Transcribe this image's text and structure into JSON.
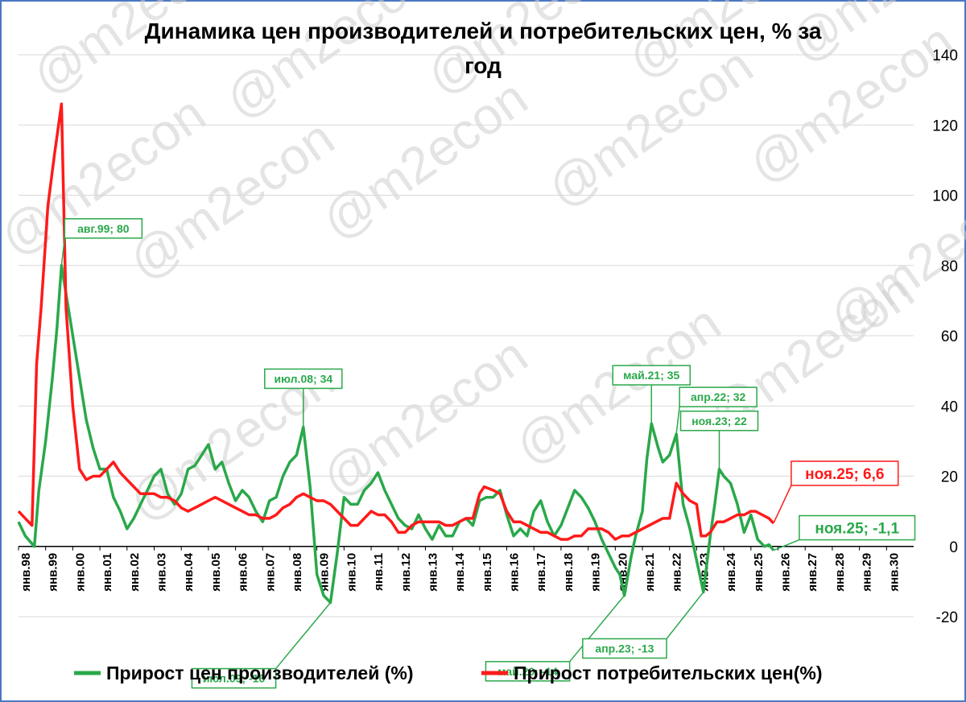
{
  "chart_data": {
    "type": "line",
    "title_line1": "Динамика цен производителей и потребительских цен, % за",
    "title_line2": "год",
    "watermark": "@m2econ",
    "ylim": [
      -20,
      140
    ],
    "y_ticks": [
      -20,
      0,
      20,
      40,
      60,
      80,
      100,
      120,
      140
    ],
    "y_axis_position": "right",
    "grid": true,
    "x_range": [
      "1998-01",
      "2031-01"
    ],
    "x_ticks": [
      "янв.98",
      "янв.99",
      "янв.00",
      "янв.01",
      "янв.02",
      "янв.03",
      "янв.04",
      "янв.05",
      "янв.06",
      "янв.07",
      "янв.08",
      "янв.09",
      "янв.10",
      "янв.11",
      "янв.12",
      "янв.13",
      "янв.14",
      "янв.15",
      "янв.16",
      "янв.17",
      "янв.18",
      "янв.19",
      "янв.20",
      "янв.21",
      "янв.22",
      "янв.23",
      "янв.24",
      "янв.25",
      "янв.26",
      "янв.27",
      "янв.28",
      "янв.29",
      "янв.30"
    ],
    "legend_position": "bottom",
    "series": [
      {
        "name": "Прирост цен производителей (%)",
        "color": "#2aa84a",
        "points": [
          [
            "1998-01",
            7
          ],
          [
            "1998-04",
            3
          ],
          [
            "1998-08",
            0
          ],
          [
            "1998-10",
            16
          ],
          [
            "1999-01",
            30
          ],
          [
            "1999-04",
            48
          ],
          [
            "1999-06",
            62
          ],
          [
            "1999-08",
            80
          ],
          [
            "1999-10",
            72
          ],
          [
            "2000-01",
            60
          ],
          [
            "2000-04",
            48
          ],
          [
            "2000-07",
            36
          ],
          [
            "2000-10",
            28
          ],
          [
            "2001-01",
            22
          ],
          [
            "2001-04",
            22
          ],
          [
            "2001-07",
            14
          ],
          [
            "2001-10",
            10
          ],
          [
            "2002-01",
            5
          ],
          [
            "2002-04",
            8
          ],
          [
            "2002-07",
            12
          ],
          [
            "2002-10",
            16
          ],
          [
            "2003-01",
            20
          ],
          [
            "2003-04",
            22
          ],
          [
            "2003-07",
            15
          ],
          [
            "2003-10",
            12
          ],
          [
            "2004-01",
            15
          ],
          [
            "2004-04",
            22
          ],
          [
            "2004-07",
            23
          ],
          [
            "2004-10",
            26
          ],
          [
            "2005-01",
            29
          ],
          [
            "2005-04",
            22
          ],
          [
            "2005-07",
            24
          ],
          [
            "2005-10",
            18
          ],
          [
            "2006-01",
            13
          ],
          [
            "2006-04",
            16
          ],
          [
            "2006-07",
            14
          ],
          [
            "2006-10",
            10
          ],
          [
            "2007-01",
            7
          ],
          [
            "2007-04",
            13
          ],
          [
            "2007-07",
            14
          ],
          [
            "2007-10",
            20
          ],
          [
            "2008-01",
            24
          ],
          [
            "2008-04",
            26
          ],
          [
            "2008-07",
            34
          ],
          [
            "2008-10",
            17
          ],
          [
            "2009-01",
            -8
          ],
          [
            "2009-04",
            -14
          ],
          [
            "2009-07",
            -16
          ],
          [
            "2009-10",
            -2
          ],
          [
            "2010-01",
            14
          ],
          [
            "2010-04",
            12
          ],
          [
            "2010-07",
            12
          ],
          [
            "2010-10",
            16
          ],
          [
            "2011-01",
            18
          ],
          [
            "2011-04",
            21
          ],
          [
            "2011-07",
            16
          ],
          [
            "2011-10",
            12
          ],
          [
            "2012-01",
            8
          ],
          [
            "2012-04",
            6
          ],
          [
            "2012-07",
            5
          ],
          [
            "2012-10",
            9
          ],
          [
            "2013-01",
            5
          ],
          [
            "2013-04",
            2
          ],
          [
            "2013-07",
            6
          ],
          [
            "2013-10",
            3
          ],
          [
            "2014-01",
            3
          ],
          [
            "2014-04",
            7
          ],
          [
            "2014-07",
            8
          ],
          [
            "2014-10",
            6
          ],
          [
            "2015-01",
            13
          ],
          [
            "2015-04",
            14
          ],
          [
            "2015-07",
            14
          ],
          [
            "2015-10",
            16
          ],
          [
            "2016-01",
            9
          ],
          [
            "2016-04",
            3
          ],
          [
            "2016-07",
            5
          ],
          [
            "2016-10",
            3
          ],
          [
            "2017-01",
            10
          ],
          [
            "2017-04",
            13
          ],
          [
            "2017-07",
            7
          ],
          [
            "2017-10",
            3
          ],
          [
            "2018-01",
            6
          ],
          [
            "2018-04",
            11
          ],
          [
            "2018-07",
            16
          ],
          [
            "2018-10",
            14
          ],
          [
            "2019-01",
            11
          ],
          [
            "2019-04",
            7
          ],
          [
            "2019-07",
            2
          ],
          [
            "2019-10",
            -2
          ],
          [
            "2020-01",
            -6
          ],
          [
            "2020-03",
            -8
          ],
          [
            "2020-05",
            -14
          ],
          [
            "2020-08",
            -3
          ],
          [
            "2020-10",
            3
          ],
          [
            "2021-01",
            10
          ],
          [
            "2021-03",
            25
          ],
          [
            "2021-05",
            35
          ],
          [
            "2021-08",
            28
          ],
          [
            "2021-10",
            24
          ],
          [
            "2022-01",
            26
          ],
          [
            "2022-04",
            32
          ],
          [
            "2022-07",
            12
          ],
          [
            "2022-10",
            5
          ],
          [
            "2023-01",
            -4
          ],
          [
            "2023-04",
            -13
          ],
          [
            "2023-07",
            3
          ],
          [
            "2023-09",
            12
          ],
          [
            "2023-11",
            22
          ],
          [
            "2024-01",
            20
          ],
          [
            "2024-04",
            18
          ],
          [
            "2024-07",
            12
          ],
          [
            "2024-10",
            4
          ],
          [
            "2025-01",
            9
          ],
          [
            "2025-04",
            2
          ],
          [
            "2025-07",
            0
          ],
          [
            "2025-09",
            0.5
          ],
          [
            "2025-11",
            -1.1
          ]
        ]
      },
      {
        "name": "Прирост потребительских цен(%)",
        "color": "#ff1a1a",
        "points": [
          [
            "1998-01",
            10
          ],
          [
            "1998-04",
            8
          ],
          [
            "1998-07",
            6
          ],
          [
            "1998-09",
            52
          ],
          [
            "1998-11",
            68
          ],
          [
            "1999-02",
            97
          ],
          [
            "1999-05",
            112
          ],
          [
            "1999-08",
            126
          ],
          [
            "1999-10",
            68
          ],
          [
            "2000-01",
            40
          ],
          [
            "2000-04",
            22
          ],
          [
            "2000-07",
            19
          ],
          [
            "2000-10",
            20
          ],
          [
            "2001-01",
            20
          ],
          [
            "2001-04",
            22
          ],
          [
            "2001-07",
            24
          ],
          [
            "2001-10",
            21
          ],
          [
            "2002-01",
            19
          ],
          [
            "2002-04",
            17
          ],
          [
            "2002-07",
            15
          ],
          [
            "2002-10",
            15
          ],
          [
            "2003-01",
            15
          ],
          [
            "2003-04",
            14
          ],
          [
            "2003-07",
            14
          ],
          [
            "2003-10",
            13
          ],
          [
            "2004-01",
            11
          ],
          [
            "2004-04",
            10
          ],
          [
            "2004-07",
            11
          ],
          [
            "2004-10",
            12
          ],
          [
            "2005-01",
            13
          ],
          [
            "2005-04",
            14
          ],
          [
            "2005-07",
            13
          ],
          [
            "2005-10",
            12
          ],
          [
            "2006-01",
            11
          ],
          [
            "2006-04",
            10
          ],
          [
            "2006-07",
            9
          ],
          [
            "2006-10",
            9
          ],
          [
            "2007-01",
            8
          ],
          [
            "2007-04",
            8
          ],
          [
            "2007-07",
            9
          ],
          [
            "2007-10",
            11
          ],
          [
            "2008-01",
            12
          ],
          [
            "2008-04",
            14
          ],
          [
            "2008-07",
            15
          ],
          [
            "2008-10",
            14
          ],
          [
            "2009-01",
            13
          ],
          [
            "2009-04",
            13
          ],
          [
            "2009-07",
            12
          ],
          [
            "2009-10",
            10
          ],
          [
            "2010-01",
            8
          ],
          [
            "2010-04",
            6
          ],
          [
            "2010-07",
            6
          ],
          [
            "2010-10",
            8
          ],
          [
            "2011-01",
            10
          ],
          [
            "2011-04",
            9
          ],
          [
            "2011-07",
            9
          ],
          [
            "2011-10",
            7
          ],
          [
            "2012-01",
            4
          ],
          [
            "2012-04",
            4
          ],
          [
            "2012-07",
            6
          ],
          [
            "2012-10",
            7
          ],
          [
            "2013-01",
            7
          ],
          [
            "2013-04",
            7
          ],
          [
            "2013-07",
            7
          ],
          [
            "2013-10",
            6
          ],
          [
            "2014-01",
            6
          ],
          [
            "2014-04",
            7
          ],
          [
            "2014-07",
            8
          ],
          [
            "2014-10",
            8
          ],
          [
            "2015-01",
            15
          ],
          [
            "2015-03",
            17
          ],
          [
            "2015-07",
            16
          ],
          [
            "2015-10",
            15
          ],
          [
            "2016-01",
            10
          ],
          [
            "2016-04",
            7
          ],
          [
            "2016-07",
            7
          ],
          [
            "2016-10",
            6
          ],
          [
            "2017-01",
            5
          ],
          [
            "2017-04",
            4
          ],
          [
            "2017-07",
            4
          ],
          [
            "2017-10",
            3
          ],
          [
            "2018-01",
            2
          ],
          [
            "2018-04",
            2
          ],
          [
            "2018-07",
            3
          ],
          [
            "2018-10",
            3
          ],
          [
            "2019-01",
            5
          ],
          [
            "2019-04",
            5
          ],
          [
            "2019-07",
            5
          ],
          [
            "2019-10",
            4
          ],
          [
            "2020-01",
            2
          ],
          [
            "2020-04",
            3
          ],
          [
            "2020-07",
            3
          ],
          [
            "2020-10",
            4
          ],
          [
            "2021-01",
            5
          ],
          [
            "2021-04",
            6
          ],
          [
            "2021-07",
            7
          ],
          [
            "2021-10",
            8
          ],
          [
            "2022-01",
            8
          ],
          [
            "2022-04",
            18
          ],
          [
            "2022-07",
            15
          ],
          [
            "2022-10",
            13
          ],
          [
            "2023-01",
            12
          ],
          [
            "2023-03",
            3
          ],
          [
            "2023-05",
            3
          ],
          [
            "2023-07",
            4
          ],
          [
            "2023-10",
            7
          ],
          [
            "2024-01",
            7
          ],
          [
            "2024-04",
            8
          ],
          [
            "2024-07",
            9
          ],
          [
            "2024-10",
            9
          ],
          [
            "2025-01",
            10
          ],
          [
            "2025-03",
            10
          ],
          [
            "2025-06",
            9
          ],
          [
            "2025-09",
            8
          ],
          [
            "2025-11",
            6.6
          ]
        ]
      }
    ],
    "annotations": [
      {
        "text": "авг.99; 80",
        "series": 0,
        "x": "1999-08",
        "y": 80,
        "place": "above-right"
      },
      {
        "text": "июл.08; 34",
        "series": 0,
        "x": "2008-07",
        "y": 34,
        "place": "above"
      },
      {
        "text": "июл.09; -16",
        "series": 0,
        "x": "2009-07",
        "y": -16,
        "place": "below-left"
      },
      {
        "text": "май.20; -14",
        "series": 0,
        "x": "2020-05",
        "y": -14,
        "place": "below-left"
      },
      {
        "text": "май.21; 35",
        "series": 0,
        "x": "2021-05",
        "y": 35,
        "place": "above"
      },
      {
        "text": "апр.22; 32",
        "series": 0,
        "x": "2022-04",
        "y": 32,
        "place": "above-right"
      },
      {
        "text": "апр.23; -13",
        "series": 0,
        "x": "2023-04",
        "y": -13,
        "place": "below"
      },
      {
        "text": "ноя.23; 22",
        "series": 0,
        "x": "2023-11",
        "y": 22,
        "place": "above"
      },
      {
        "text": "ноя.25; 6,6",
        "series": 1,
        "x": "2025-11",
        "y": 6.6,
        "place": "right-up",
        "big": true
      },
      {
        "text": "ноя.25; -1,1",
        "series": 0,
        "x": "2025-11",
        "y": -1.1,
        "place": "right-up-low",
        "big": true
      }
    ]
  }
}
